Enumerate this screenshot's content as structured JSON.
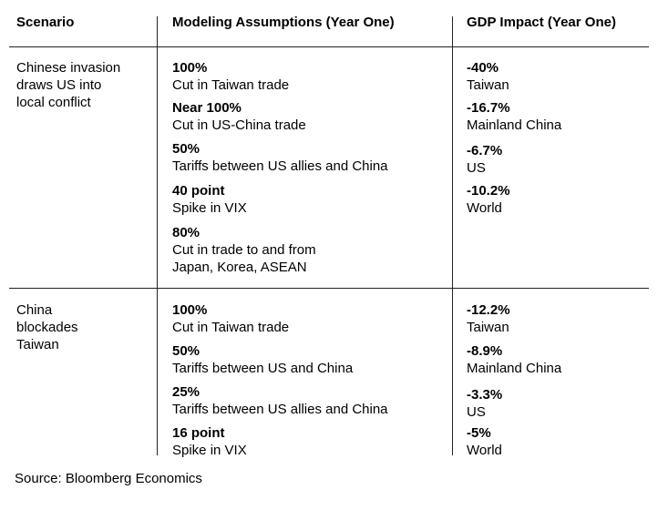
{
  "headers": {
    "scenario": "Scenario",
    "assumptions": "Modeling Assumptions (Year One)",
    "gdp": "GDP Impact (Year One)"
  },
  "rows": [
    {
      "scenario": "Chinese invasion\ndraws US into\nlocal conflict",
      "assumptions": [
        {
          "value": "100%",
          "desc": "Cut in Taiwan trade"
        },
        {
          "value": "Near 100%",
          "desc": "Cut in US-China trade"
        },
        {
          "value": "50%",
          "desc": "Tariffs between US allies and China"
        },
        {
          "value": "40 point",
          "desc": "Spike in VIX"
        },
        {
          "value": "80%",
          "desc": "Cut in trade to and from\nJapan, Korea, ASEAN"
        }
      ],
      "gdp": [
        {
          "value": "-40%",
          "desc": "Taiwan"
        },
        {
          "value": "-16.7%",
          "desc": "Mainland China"
        },
        {
          "value": "-6.7%",
          "desc": "US"
        },
        {
          "value": "-10.2%",
          "desc": "World"
        }
      ]
    },
    {
      "scenario": "China\nblockades\nTaiwan",
      "assumptions": [
        {
          "value": "100%",
          "desc": "Cut in Taiwan trade"
        },
        {
          "value": "50%",
          "desc": "Tariffs between US and China"
        },
        {
          "value": "25%",
          "desc": "Tariffs between US allies and China"
        },
        {
          "value": "16 point",
          "desc": "Spike in VIX"
        }
      ],
      "gdp": [
        {
          "value": "-12.2%",
          "desc": "Taiwan"
        },
        {
          "value": "-8.9%",
          "desc": "Mainland China"
        },
        {
          "value": "-3.3%",
          "desc": "US"
        },
        {
          "value": "-5%",
          "desc": "World"
        }
      ]
    }
  ],
  "source": "Source: Bloomberg Economics"
}
